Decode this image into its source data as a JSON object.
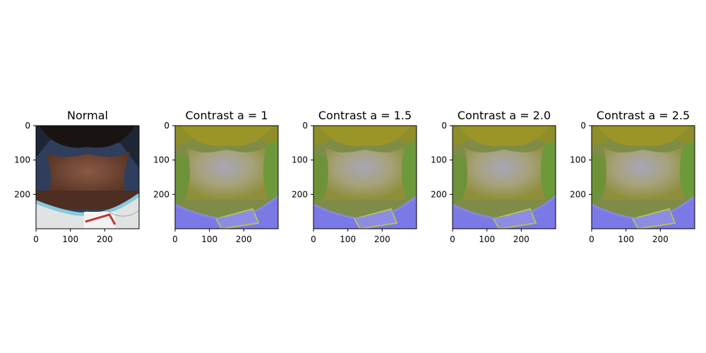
{
  "panels": [
    {
      "title": "Normal",
      "variant": "normal"
    },
    {
      "title": "Contrast a = 1",
      "variant": "contrast"
    },
    {
      "title": "Contrast a = 1.5",
      "variant": "contrast"
    },
    {
      "title": "Contrast a = 2.0",
      "variant": "contrast"
    },
    {
      "title": "Contrast a = 2.5",
      "variant": "contrast"
    }
  ],
  "ticks": {
    "x": [
      "0",
      "100",
      "200"
    ],
    "y": [
      "0",
      "100",
      "200"
    ]
  }
}
